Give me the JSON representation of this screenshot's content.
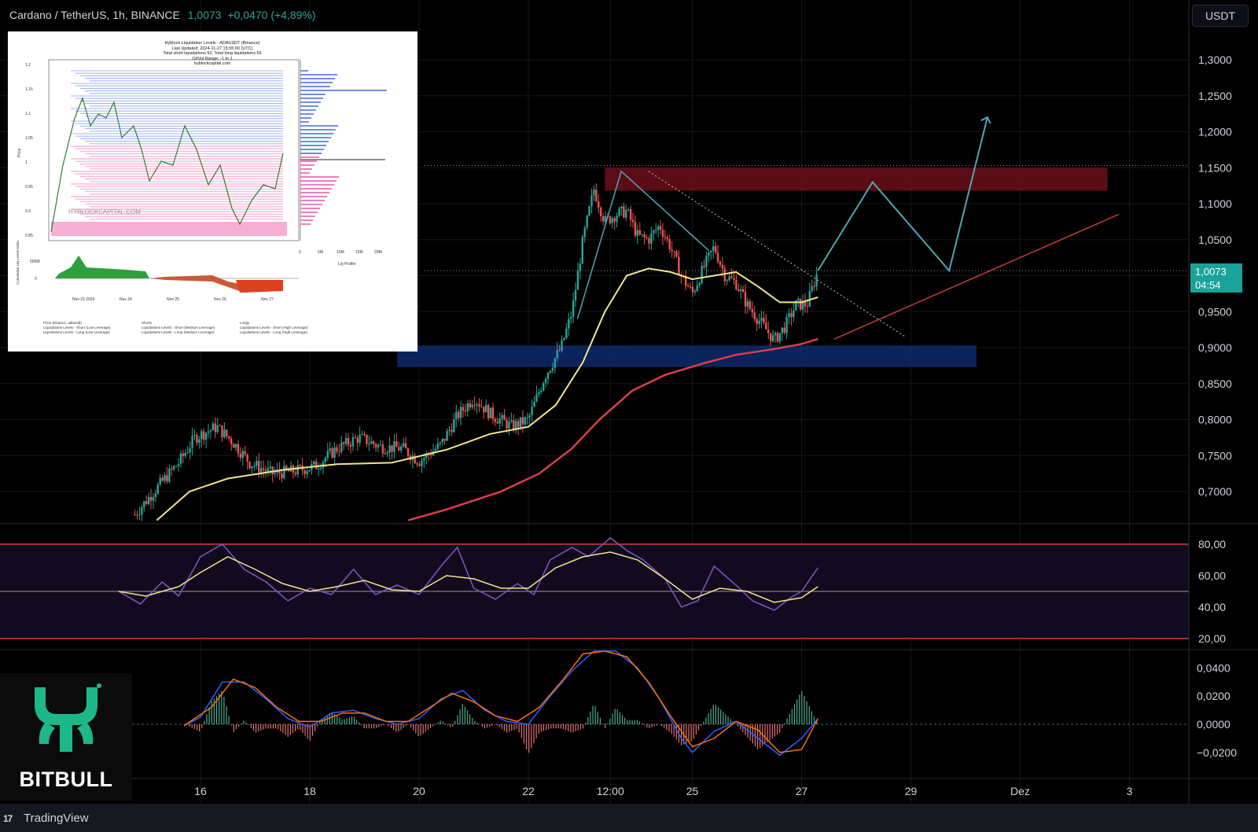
{
  "header": {
    "symbol": "Cardano / TetherUS, 1h, BINANCE",
    "last_price": "1,0073",
    "change": "+0,0470 (+4,89%)"
  },
  "currency_button": "USDT",
  "price_tag": {
    "price": "1,0073",
    "countdown": "04:54"
  },
  "colors": {
    "background": "#000000",
    "up_candle": "#26a69a",
    "down_candle": "#ef5350",
    "ema_fast": "#f0e68c",
    "ema_slow": "#e03c4c",
    "resistance_zone": "#6b0f1a",
    "support_zone": "#0d2a6b",
    "projection": "#4aa8b5",
    "rsi_line": "#7e57c2",
    "macd_line": "#2962ff",
    "signal_line": "#ff6d00"
  },
  "inset": {
    "title_lines": [
      "Hyblock Liquidation Levels - ADAUSDT (Binance)",
      "Last Updated: 2024-11-27 15:55:00 (UTC)",
      "Total short liquidations 93, Total long liquidations 65",
      "OI/Vol Range: -1 to 1",
      "hyblockcapital.com"
    ],
    "watermark": "HYBLOCKCAPITAL.COM",
    "y_ticks": [
      "1.2",
      "1.15",
      "1.1",
      "1.05",
      "1",
      "0.95",
      "0.9",
      "0.85"
    ],
    "y_label": "Price",
    "profile_ticks": [
      "0",
      "5M",
      "10M",
      "15M",
      "20M"
    ],
    "profile_label": "Liq Profile",
    "delta_tick": "500M",
    "delta_zero": "0",
    "delta_label": "Cumulative Liq Levels Delta",
    "x_ticks": [
      "Nov 23 2024",
      "Nov 24",
      "Nov 25",
      "Nov 26",
      "Nov 27"
    ],
    "legend": [
      "Price (binance, adausdt)",
      "Shorts",
      "Longs",
      "Liquidations Levels - Short (Low Leverage)",
      "Liquidations Levels - Short (Medium Leverage)",
      "Liquidations Levels - Short (High Leverage)",
      "Liquidations Levels - Long (Low Leverage)",
      "Liquidations Levels - Long (Medium Leverage)",
      "Liquidations Levels - Long (High Leverage)"
    ]
  },
  "branding": {
    "logo_text": "BITBULL",
    "footer": "TradingView"
  },
  "chart_data": {
    "type": "candlestick",
    "price_axis": {
      "ticks": [
        "1,3000",
        "1,2500",
        "1,2000",
        "1,1500",
        "1,1000",
        "1,0500",
        "1,0000",
        "0,9500",
        "0,9000",
        "0,8500",
        "0,8000",
        "0,7500",
        "0,7000"
      ],
      "tick_values": [
        1.3,
        1.25,
        1.2,
        1.15,
        1.1,
        1.05,
        1.0,
        0.95,
        0.9,
        0.85,
        0.8,
        0.75,
        0.7
      ]
    },
    "time_axis": [
      "16",
      "18",
      "20",
      "22",
      "12:00",
      "25",
      "27",
      "29",
      "Dez",
      "3"
    ],
    "price_series": {
      "points": [
        [
          14.8,
          0.668
        ],
        [
          15.2,
          0.705
        ],
        [
          15.6,
          0.74
        ],
        [
          15.9,
          0.775
        ],
        [
          16.3,
          0.79
        ],
        [
          16.6,
          0.768
        ],
        [
          16.9,
          0.74
        ],
        [
          17.3,
          0.725
        ],
        [
          17.7,
          0.728
        ],
        [
          18.1,
          0.735
        ],
        [
          18.5,
          0.76
        ],
        [
          18.9,
          0.775
        ],
        [
          19.3,
          0.762
        ],
        [
          19.7,
          0.76
        ],
        [
          20.0,
          0.742
        ],
        [
          20.4,
          0.765
        ],
        [
          20.7,
          0.805
        ],
        [
          21.0,
          0.83
        ],
        [
          21.3,
          0.808
        ],
        [
          21.7,
          0.79
        ],
        [
          22.0,
          0.8
        ],
        [
          22.3,
          0.86
        ],
        [
          22.6,
          0.9
        ],
        [
          22.8,
          0.95
        ],
        [
          23.0,
          1.05
        ],
        [
          23.2,
          1.12
        ],
        [
          23.4,
          1.075
        ],
        [
          23.6,
          1.085
        ],
        [
          23.8,
          1.09
        ],
        [
          24.0,
          1.055
        ],
        [
          24.2,
          1.05
        ],
        [
          24.4,
          1.07
        ],
        [
          24.6,
          1.04
        ],
        [
          24.8,
          1.0
        ],
        [
          25.0,
          0.975
        ],
        [
          25.2,
          1.01
        ],
        [
          25.4,
          1.04
        ],
        [
          25.6,
          1.0
        ],
        [
          25.8,
          0.99
        ],
        [
          26.0,
          0.96
        ],
        [
          26.2,
          0.94
        ],
        [
          26.5,
          0.91
        ],
        [
          26.7,
          0.93
        ],
        [
          26.9,
          0.96
        ],
        [
          27.1,
          0.96
        ],
        [
          27.3,
          1.007
        ]
      ]
    },
    "ema_fast": {
      "points": [
        [
          15.2,
          0.66
        ],
        [
          15.8,
          0.7
        ],
        [
          16.5,
          0.718
        ],
        [
          17.5,
          0.73
        ],
        [
          18.5,
          0.738
        ],
        [
          19.5,
          0.74
        ],
        [
          20.5,
          0.758
        ],
        [
          21.3,
          0.78
        ],
        [
          22.0,
          0.79
        ],
        [
          22.5,
          0.82
        ],
        [
          23.0,
          0.88
        ],
        [
          23.4,
          0.95
        ],
        [
          23.8,
          1.0
        ],
        [
          24.2,
          1.01
        ],
        [
          24.6,
          1.005
        ],
        [
          25.0,
          0.995
        ],
        [
          25.4,
          1.0
        ],
        [
          25.8,
          1.005
        ],
        [
          26.2,
          0.985
        ],
        [
          26.6,
          0.963
        ],
        [
          27.0,
          0.963
        ],
        [
          27.3,
          0.97
        ]
      ]
    },
    "ema_slow": {
      "points": [
        [
          19.8,
          0.66
        ],
        [
          20.5,
          0.675
        ],
        [
          21.5,
          0.7
        ],
        [
          22.2,
          0.725
        ],
        [
          22.8,
          0.76
        ],
        [
          23.3,
          0.8
        ],
        [
          23.9,
          0.84
        ],
        [
          24.5,
          0.862
        ],
        [
          25.2,
          0.878
        ],
        [
          25.8,
          0.89
        ],
        [
          26.5,
          0.898
        ],
        [
          27.0,
          0.905
        ],
        [
          27.3,
          0.912
        ]
      ]
    },
    "resistance_zone": {
      "from_x": 23.4,
      "to_x": 32.6,
      "from_price": 1.118,
      "to_price": 1.15
    },
    "support_zone": {
      "from_x": 19.6,
      "to_x": 30.2,
      "from_price": 0.873,
      "to_price": 0.903
    },
    "horizontal_levels": [
      1.153,
      1.007
    ],
    "trend_lines": {
      "downtrend": [
        [
          24.2,
          1.145
        ],
        [
          28.9,
          0.915
        ]
      ],
      "uptrend": [
        [
          27.6,
          0.912
        ],
        [
          32.8,
          1.085
        ]
      ],
      "channel": [
        [
          22.9,
          0.94
        ],
        [
          23.7,
          1.145
        ],
        [
          25.3,
          1.035
        ]
      ]
    },
    "projection_path": [
      [
        27.3,
        1.007
      ],
      [
        28.3,
        1.13
      ],
      [
        29.7,
        1.007
      ],
      [
        30.4,
        1.22
      ]
    ],
    "rsi": {
      "axis_ticks": [
        "80,00",
        "60,00",
        "40,00",
        "20,00"
      ],
      "tick_values": [
        80,
        60,
        40,
        20
      ],
      "overbought": 80,
      "middle": 50,
      "oversold": 20,
      "rsi_points": [
        [
          14.5,
          50
        ],
        [
          14.9,
          42
        ],
        [
          15.3,
          56
        ],
        [
          15.6,
          47
        ],
        [
          16.0,
          72
        ],
        [
          16.4,
          80
        ],
        [
          16.8,
          64
        ],
        [
          17.2,
          56
        ],
        [
          17.6,
          44
        ],
        [
          18.0,
          52
        ],
        [
          18.4,
          48
        ],
        [
          18.8,
          64
        ],
        [
          19.2,
          48
        ],
        [
          19.6,
          54
        ],
        [
          20.0,
          48
        ],
        [
          20.4,
          66
        ],
        [
          20.7,
          78
        ],
        [
          21.0,
          52
        ],
        [
          21.4,
          45
        ],
        [
          21.8,
          55
        ],
        [
          22.1,
          48
        ],
        [
          22.4,
          70
        ],
        [
          22.8,
          78
        ],
        [
          23.1,
          72
        ],
        [
          23.5,
          84
        ],
        [
          23.8,
          76
        ],
        [
          24.1,
          70
        ],
        [
          24.5,
          58
        ],
        [
          24.8,
          40
        ],
        [
          25.1,
          44
        ],
        [
          25.4,
          66
        ],
        [
          25.8,
          54
        ],
        [
          26.1,
          44
        ],
        [
          26.5,
          38
        ],
        [
          26.8,
          46
        ],
        [
          27.0,
          50
        ],
        [
          27.3,
          65
        ]
      ],
      "signal_points": [
        [
          14.5,
          50
        ],
        [
          15.0,
          47
        ],
        [
          15.6,
          53
        ],
        [
          16.0,
          62
        ],
        [
          16.5,
          72
        ],
        [
          17.0,
          64
        ],
        [
          17.5,
          55
        ],
        [
          18.0,
          50
        ],
        [
          18.5,
          53
        ],
        [
          19.0,
          57
        ],
        [
          19.5,
          51
        ],
        [
          20.0,
          50
        ],
        [
          20.5,
          60
        ],
        [
          21.0,
          58
        ],
        [
          21.5,
          52
        ],
        [
          22.0,
          52
        ],
        [
          22.5,
          65
        ],
        [
          23.0,
          72
        ],
        [
          23.5,
          75
        ],
        [
          24.0,
          70
        ],
        [
          24.5,
          58
        ],
        [
          25.0,
          45
        ],
        [
          25.5,
          52
        ],
        [
          26.0,
          50
        ],
        [
          26.5,
          43
        ],
        [
          27.0,
          46
        ],
        [
          27.3,
          53
        ]
      ]
    },
    "macd": {
      "axis_ticks": [
        "0,0400",
        "0,0200",
        "0,0000",
        "−0,0200"
      ],
      "tick_values": [
        0.04,
        0.02,
        0.0,
        -0.02
      ],
      "macd_points": [
        [
          15.7,
          -0.001
        ],
        [
          16.0,
          0.005
        ],
        [
          16.4,
          0.03
        ],
        [
          16.8,
          0.03
        ],
        [
          17.2,
          0.018
        ],
        [
          17.6,
          0.004
        ],
        [
          18.0,
          -0.002
        ],
        [
          18.4,
          0.008
        ],
        [
          18.8,
          0.01
        ],
        [
          19.2,
          0.004
        ],
        [
          19.6,
          0.0
        ],
        [
          20.0,
          0.004
        ],
        [
          20.4,
          0.018
        ],
        [
          20.8,
          0.024
        ],
        [
          21.2,
          0.01
        ],
        [
          21.6,
          0.002
        ],
        [
          22.0,
          0.0
        ],
        [
          22.4,
          0.02
        ],
        [
          22.8,
          0.038
        ],
        [
          23.2,
          0.06
        ],
        [
          23.6,
          0.058
        ],
        [
          24.0,
          0.04
        ],
        [
          24.4,
          0.018
        ],
        [
          24.8,
          -0.01
        ],
        [
          25.0,
          -0.02
        ],
        [
          25.4,
          -0.005
        ],
        [
          25.8,
          0.002
        ],
        [
          26.2,
          -0.01
        ],
        [
          26.6,
          -0.022
        ],
        [
          27.0,
          -0.01
        ],
        [
          27.3,
          0.004
        ]
      ],
      "signal_points": [
        [
          15.7,
          -0.001
        ],
        [
          16.2,
          0.012
        ],
        [
          16.6,
          0.032
        ],
        [
          17.0,
          0.026
        ],
        [
          17.4,
          0.012
        ],
        [
          17.8,
          0.002
        ],
        [
          18.2,
          0.002
        ],
        [
          18.6,
          0.008
        ],
        [
          19.0,
          0.008
        ],
        [
          19.4,
          0.002
        ],
        [
          19.8,
          0.002
        ],
        [
          20.2,
          0.012
        ],
        [
          20.6,
          0.022
        ],
        [
          21.0,
          0.016
        ],
        [
          21.4,
          0.006
        ],
        [
          21.8,
          0.002
        ],
        [
          22.2,
          0.012
        ],
        [
          22.6,
          0.03
        ],
        [
          23.0,
          0.05
        ],
        [
          23.4,
          0.06
        ],
        [
          23.8,
          0.048
        ],
        [
          24.2,
          0.03
        ],
        [
          24.6,
          0.006
        ],
        [
          25.0,
          -0.016
        ],
        [
          25.4,
          -0.01
        ],
        [
          25.8,
          0.002
        ],
        [
          26.2,
          -0.004
        ],
        [
          26.6,
          -0.02
        ],
        [
          27.0,
          -0.018
        ],
        [
          27.3,
          0.004
        ]
      ]
    }
  }
}
